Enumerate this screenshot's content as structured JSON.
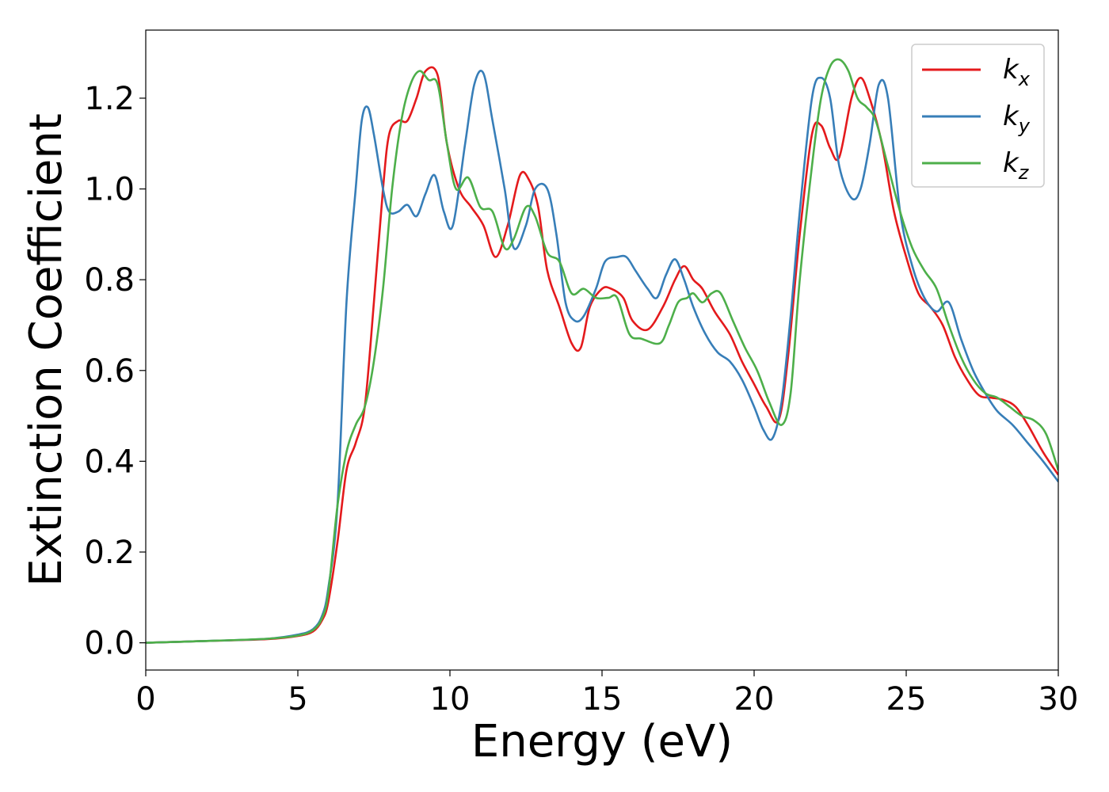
{
  "chart_data": {
    "type": "line",
    "title": "",
    "xlabel": "Energy (eV)",
    "ylabel": "Extinction Coefficient",
    "xlim": [
      0,
      30
    ],
    "ylim": [
      -0.06,
      1.35
    ],
    "xticks": [
      0,
      5,
      10,
      15,
      20,
      25,
      30
    ],
    "xtick_labels": [
      "0",
      "5",
      "10",
      "15",
      "20",
      "25",
      "30"
    ],
    "yticks": [
      0.0,
      0.2,
      0.4,
      0.6,
      0.8,
      1.0,
      1.2
    ],
    "ytick_labels": [
      "0.0",
      "0.2",
      "0.4",
      "0.6",
      "0.8",
      "1.0",
      "1.2"
    ],
    "grid": false,
    "legend_position": "top-right",
    "series": [
      {
        "name": "k",
        "sub": "x",
        "color": "#e41a1c",
        "x": [
          0,
          2,
          4,
          5,
          5.5,
          5.8,
          6.0,
          6.3,
          6.6,
          6.9,
          7.2,
          7.5,
          7.8,
          8.0,
          8.3,
          8.6,
          8.9,
          9.2,
          9.6,
          9.9,
          10.3,
          10.7,
          11.1,
          11.5,
          11.9,
          12.3,
          12.6,
          12.9,
          13.2,
          13.6,
          14.0,
          14.3,
          14.6,
          15.0,
          15.3,
          15.7,
          16.0,
          16.5,
          17.0,
          17.4,
          17.7,
          18.0,
          18.3,
          18.7,
          19.2,
          19.6,
          20.0,
          20.4,
          20.8,
          21.1,
          21.5,
          21.9,
          22.2,
          22.5,
          22.8,
          23.2,
          23.5,
          23.8,
          24.2,
          24.6,
          25.0,
          25.4,
          25.8,
          26.2,
          26.6,
          27.0,
          27.4,
          27.8,
          28.2,
          28.6,
          29.0,
          29.5,
          30.0
        ],
        "values": [
          0.0,
          0.004,
          0.008,
          0.015,
          0.025,
          0.05,
          0.09,
          0.22,
          0.38,
          0.44,
          0.52,
          0.75,
          1.0,
          1.12,
          1.15,
          1.15,
          1.2,
          1.26,
          1.25,
          1.1,
          1.0,
          0.96,
          0.92,
          0.85,
          0.92,
          1.03,
          1.02,
          0.96,
          0.82,
          0.74,
          0.66,
          0.65,
          0.74,
          0.78,
          0.78,
          0.76,
          0.71,
          0.69,
          0.74,
          0.8,
          0.83,
          0.8,
          0.78,
          0.73,
          0.68,
          0.62,
          0.57,
          0.52,
          0.49,
          0.62,
          0.9,
          1.12,
          1.14,
          1.09,
          1.07,
          1.2,
          1.245,
          1.2,
          1.1,
          0.95,
          0.85,
          0.77,
          0.74,
          0.7,
          0.63,
          0.58,
          0.545,
          0.54,
          0.535,
          0.52,
          0.48,
          0.42,
          0.37
        ]
      },
      {
        "name": "k",
        "sub": "y",
        "color": "#377eb8",
        "x": [
          0,
          2,
          4,
          5,
          5.5,
          5.8,
          6.0,
          6.3,
          6.6,
          6.9,
          7.1,
          7.3,
          7.5,
          7.8,
          8.0,
          8.3,
          8.6,
          8.9,
          9.2,
          9.5,
          9.8,
          10.1,
          10.5,
          10.8,
          11.1,
          11.4,
          11.8,
          12.1,
          12.5,
          12.8,
          13.2,
          13.5,
          13.8,
          14.1,
          14.4,
          14.8,
          15.1,
          15.5,
          15.8,
          16.1,
          16.5,
          16.8,
          17.1,
          17.4,
          17.7,
          18.0,
          18.4,
          18.8,
          19.2,
          19.6,
          20.0,
          20.3,
          20.6,
          20.9,
          21.2,
          21.5,
          21.9,
          22.2,
          22.5,
          22.8,
          23.2,
          23.5,
          23.8,
          24.1,
          24.4,
          24.8,
          25.2,
          25.6,
          26.0,
          26.4,
          26.8,
          27.2,
          27.6,
          28.0,
          28.5,
          29.0,
          29.5,
          30.0
        ],
        "values": [
          0.0,
          0.004,
          0.009,
          0.018,
          0.03,
          0.06,
          0.12,
          0.3,
          0.75,
          1.0,
          1.15,
          1.18,
          1.12,
          1.0,
          0.95,
          0.95,
          0.965,
          0.94,
          0.99,
          1.03,
          0.95,
          0.92,
          1.1,
          1.23,
          1.255,
          1.15,
          1.0,
          0.87,
          0.92,
          1.0,
          1.0,
          0.9,
          0.75,
          0.71,
          0.72,
          0.78,
          0.84,
          0.85,
          0.85,
          0.82,
          0.78,
          0.76,
          0.81,
          0.845,
          0.8,
          0.74,
          0.68,
          0.64,
          0.62,
          0.58,
          0.52,
          0.47,
          0.45,
          0.53,
          0.72,
          0.95,
          1.2,
          1.245,
          1.2,
          1.05,
          0.98,
          1.0,
          1.1,
          1.23,
          1.2,
          0.95,
          0.83,
          0.76,
          0.73,
          0.75,
          0.67,
          0.6,
          0.55,
          0.51,
          0.48,
          0.44,
          0.4,
          0.355
        ]
      },
      {
        "name": "k",
        "sub": "z",
        "color": "#4daf4a",
        "x": [
          0,
          2,
          4,
          5,
          5.5,
          5.8,
          6.0,
          6.3,
          6.6,
          6.9,
          7.2,
          7.5,
          7.8,
          8.1,
          8.4,
          8.7,
          9.0,
          9.3,
          9.6,
          9.9,
          10.2,
          10.6,
          11.0,
          11.4,
          11.8,
          12.1,
          12.5,
          12.8,
          13.2,
          13.6,
          14.0,
          14.4,
          14.8,
          15.2,
          15.5,
          15.9,
          16.3,
          16.9,
          17.2,
          17.5,
          17.8,
          18.0,
          18.3,
          18.6,
          18.9,
          19.3,
          19.7,
          20.1,
          20.5,
          20.9,
          21.2,
          21.5,
          21.9,
          22.2,
          22.5,
          22.8,
          23.1,
          23.4,
          23.7,
          24.0,
          24.4,
          24.8,
          25.2,
          25.6,
          26.0,
          26.4,
          26.8,
          27.2,
          27.6,
          28.0,
          28.4,
          28.8,
          29.2,
          29.6,
          30.0
        ],
        "values": [
          0.0,
          0.004,
          0.009,
          0.016,
          0.028,
          0.055,
          0.11,
          0.3,
          0.42,
          0.48,
          0.52,
          0.62,
          0.78,
          1.0,
          1.15,
          1.23,
          1.26,
          1.24,
          1.23,
          1.1,
          1.0,
          1.025,
          0.96,
          0.95,
          0.87,
          0.89,
          0.96,
          0.94,
          0.86,
          0.84,
          0.77,
          0.78,
          0.76,
          0.76,
          0.76,
          0.68,
          0.67,
          0.66,
          0.7,
          0.75,
          0.76,
          0.77,
          0.75,
          0.77,
          0.77,
          0.71,
          0.65,
          0.6,
          0.53,
          0.48,
          0.55,
          0.8,
          1.05,
          1.2,
          1.27,
          1.285,
          1.26,
          1.2,
          1.18,
          1.15,
          1.05,
          0.95,
          0.87,
          0.82,
          0.78,
          0.7,
          0.63,
          0.58,
          0.55,
          0.54,
          0.52,
          0.5,
          0.49,
          0.46,
          0.38
        ]
      }
    ]
  }
}
